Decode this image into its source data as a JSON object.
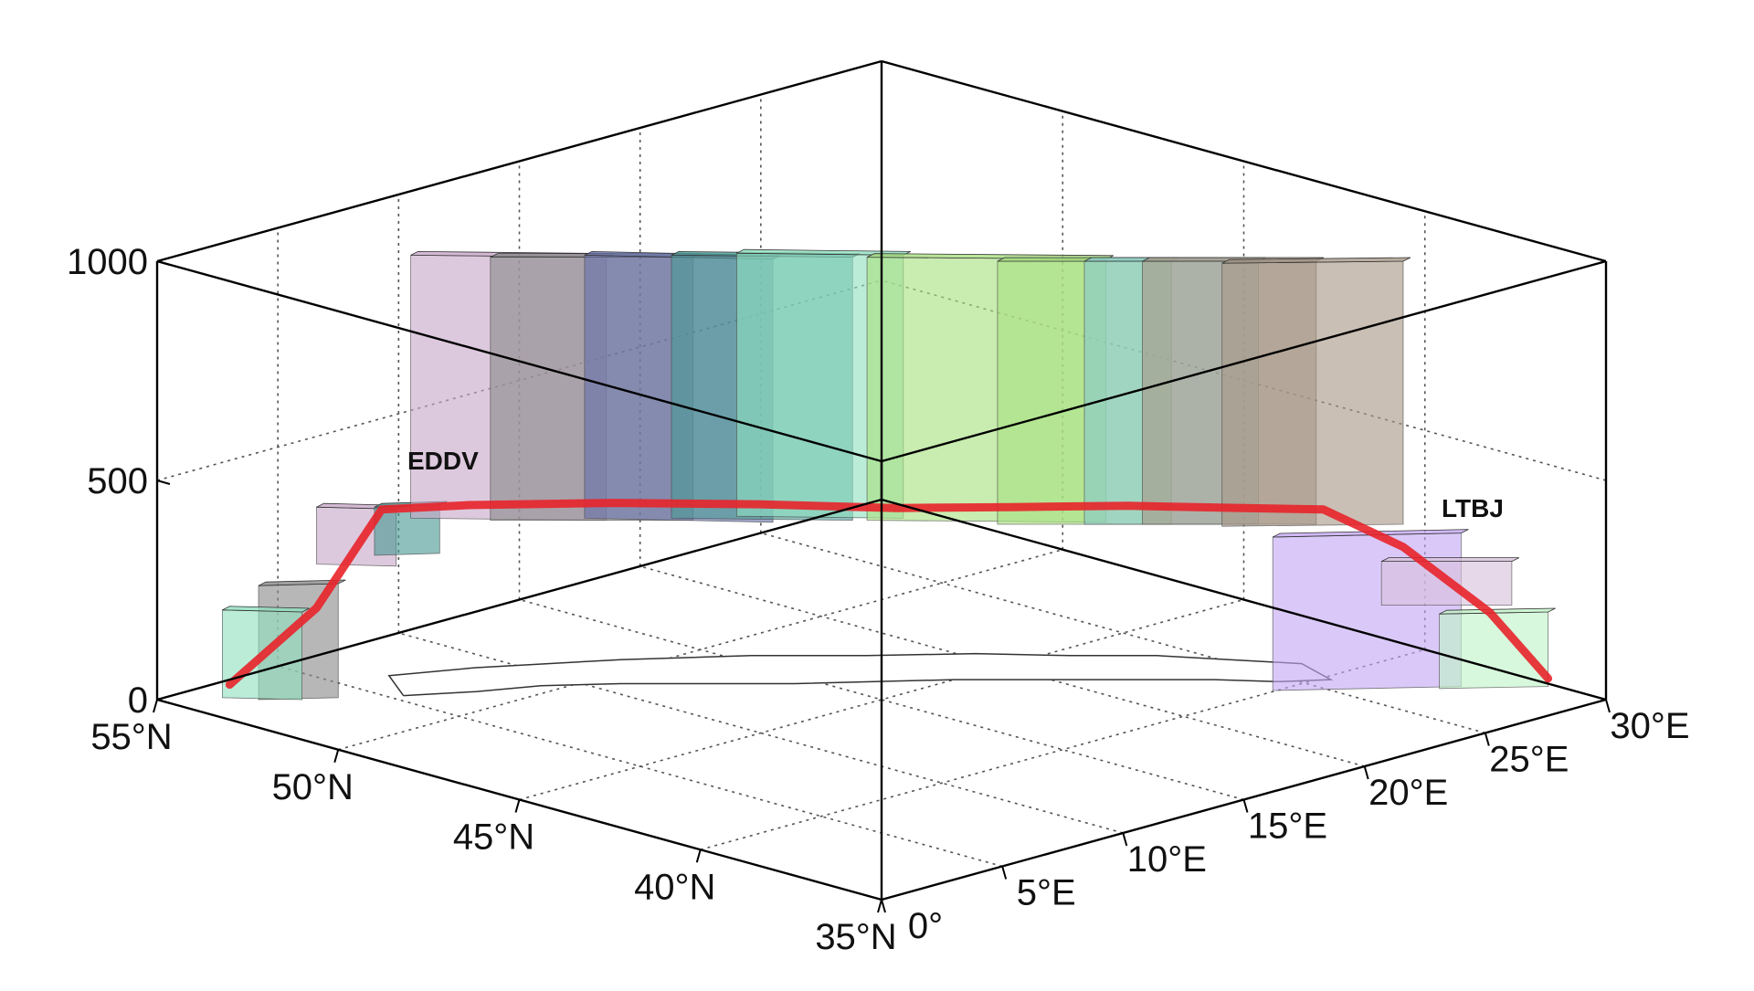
{
  "chart_data": {
    "type": "3d-route",
    "zlim": [
      0,
      1000
    ],
    "z_ticks": [
      "0",
      "500",
      "1000"
    ],
    "lat_ticks": [
      "55°N",
      "50°N",
      "45°N",
      "40°N",
      "35°N"
    ],
    "lon_ticks": [
      "0°",
      "5°E",
      "10°E",
      "15°E",
      "20°E",
      "25°E",
      "30°E"
    ],
    "grid": true,
    "annotations": {
      "origin": "EDDV",
      "destination": "LTBJ"
    },
    "route_color": "#e8232a",
    "sector_colors": [
      "#c8a8c8",
      "#8a8a8a",
      "#6670a8",
      "#4a9a94",
      "#90e0c0",
      "#a8e080",
      "#88c8cc",
      "#a89888",
      "#c4a8f4",
      "#d8c0dc",
      "#c0f4c8"
    ]
  }
}
